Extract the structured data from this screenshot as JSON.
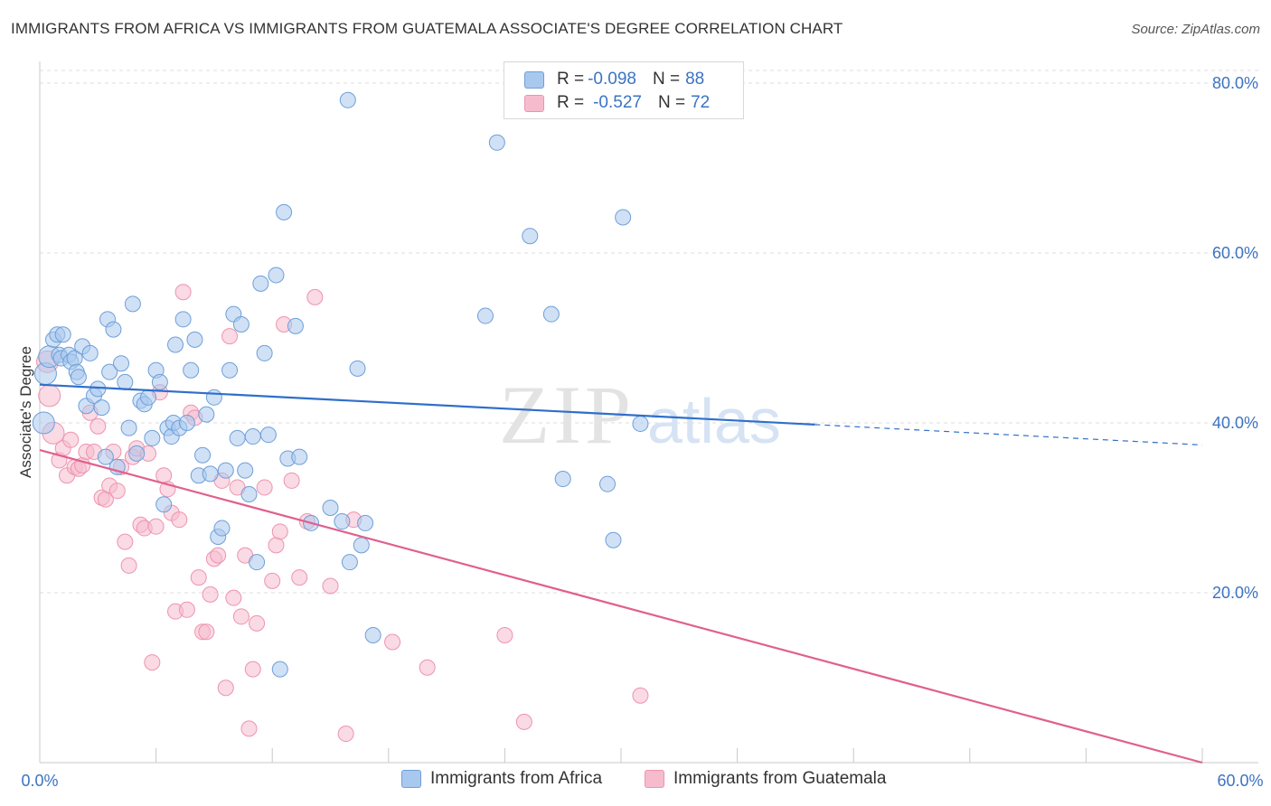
{
  "title": "IMMIGRANTS FROM AFRICA VS IMMIGRANTS FROM GUATEMALA ASSOCIATE'S DEGREE CORRELATION CHART",
  "source": "Source: ZipAtlas.com",
  "watermark": {
    "zip": "ZIP",
    "atlas": "atlas"
  },
  "colors": {
    "africa_fill": "#a9c8ee",
    "africa_stroke": "#6e9fd8",
    "africa_line": "#2f6fca",
    "guatemala_fill": "#f6bccd",
    "guatemala_stroke": "#ee93ae",
    "guatemala_line": "#e0608e",
    "axis_text": "#3b73c4",
    "grid": "#dddddd"
  },
  "legend_top": {
    "rows": [
      {
        "r_label": "R =",
        "r_value": "-0.098",
        "n_label": "N =",
        "n_value": "88"
      },
      {
        "r_label": "R =",
        "r_value": "-0.527",
        "n_label": "N =",
        "n_value": "72"
      }
    ]
  },
  "legend_bottom": [
    "Immigrants from Africa",
    "Immigrants from Guatemala"
  ],
  "chart_data": {
    "type": "scatter",
    "title": "IMMIGRANTS FROM AFRICA VS IMMIGRANTS FROM GUATEMALA ASSOCIATE'S DEGREE CORRELATION CHART",
    "xlabel": "",
    "ylabel": "Associate's Degree",
    "xlim": [
      0,
      60
    ],
    "ylim": [
      0,
      80
    ],
    "x_tick_labels": [
      "0.0%",
      "60.0%"
    ],
    "y_tick_labels": [
      "20.0%",
      "40.0%",
      "60.0%",
      "80.0%"
    ],
    "y_tick_values": [
      20,
      40,
      60,
      80
    ],
    "grid": true,
    "legend_position": "bottom",
    "series": [
      {
        "name": "Immigrants from Africa",
        "r": -0.098,
        "n": 88,
        "trend": {
          "x0": 0,
          "y0": 44.5,
          "x1": 40,
          "y1": 39.8,
          "dashed_to_x": 60,
          "dashed_to_y": 37.4
        },
        "points": [
          [
            0.2,
            40.0
          ],
          [
            0.3,
            45.8
          ],
          [
            0.5,
            47.8
          ],
          [
            0.7,
            49.8
          ],
          [
            0.9,
            50.4
          ],
          [
            1.0,
            48.0
          ],
          [
            1.1,
            47.6
          ],
          [
            1.2,
            50.4
          ],
          [
            1.5,
            48.0
          ],
          [
            1.6,
            47.2
          ],
          [
            1.8,
            47.6
          ],
          [
            1.9,
            46.0
          ],
          [
            2.0,
            45.4
          ],
          [
            2.2,
            49.0
          ],
          [
            2.4,
            42.0
          ],
          [
            2.6,
            48.2
          ],
          [
            2.8,
            43.2
          ],
          [
            3.0,
            44.0
          ],
          [
            3.2,
            41.8
          ],
          [
            3.4,
            36.0
          ],
          [
            3.5,
            52.2
          ],
          [
            3.6,
            46.0
          ],
          [
            3.8,
            51.0
          ],
          [
            4.0,
            34.8
          ],
          [
            4.2,
            47.0
          ],
          [
            4.4,
            44.8
          ],
          [
            4.6,
            39.4
          ],
          [
            4.8,
            54.0
          ],
          [
            5.0,
            36.4
          ],
          [
            5.2,
            42.6
          ],
          [
            5.4,
            42.2
          ],
          [
            5.6,
            43.0
          ],
          [
            5.8,
            38.2
          ],
          [
            6.0,
            46.2
          ],
          [
            6.2,
            44.8
          ],
          [
            6.4,
            30.4
          ],
          [
            6.6,
            39.4
          ],
          [
            6.8,
            38.4
          ],
          [
            6.9,
            40.0
          ],
          [
            7.0,
            49.2
          ],
          [
            7.2,
            39.4
          ],
          [
            7.4,
            52.2
          ],
          [
            7.6,
            40.0
          ],
          [
            7.8,
            46.2
          ],
          [
            8.0,
            49.8
          ],
          [
            8.2,
            33.8
          ],
          [
            8.4,
            36.2
          ],
          [
            8.6,
            41.0
          ],
          [
            8.8,
            34.0
          ],
          [
            9.0,
            43.0
          ],
          [
            9.2,
            26.6
          ],
          [
            9.4,
            27.6
          ],
          [
            9.6,
            34.4
          ],
          [
            9.8,
            46.2
          ],
          [
            10.0,
            52.8
          ],
          [
            10.2,
            38.2
          ],
          [
            10.4,
            51.6
          ],
          [
            10.6,
            34.4
          ],
          [
            10.8,
            31.6
          ],
          [
            11.0,
            38.4
          ],
          [
            11.2,
            23.6
          ],
          [
            11.4,
            56.4
          ],
          [
            11.6,
            48.2
          ],
          [
            11.8,
            38.6
          ],
          [
            12.2,
            57.4
          ],
          [
            12.4,
            11.0
          ],
          [
            12.6,
            64.8
          ],
          [
            12.8,
            35.8
          ],
          [
            13.2,
            51.4
          ],
          [
            13.4,
            36.0
          ],
          [
            14.0,
            28.2
          ],
          [
            15.0,
            30.0
          ],
          [
            15.6,
            28.4
          ],
          [
            15.9,
            78.0
          ],
          [
            16.0,
            23.6
          ],
          [
            16.4,
            46.4
          ],
          [
            16.6,
            25.6
          ],
          [
            16.8,
            28.2
          ],
          [
            17.2,
            15.0
          ],
          [
            23.0,
            52.6
          ],
          [
            23.6,
            73.0
          ],
          [
            25.3,
            62.0
          ],
          [
            26.4,
            52.8
          ],
          [
            27.0,
            33.4
          ],
          [
            29.3,
            32.8
          ],
          [
            29.6,
            26.2
          ],
          [
            30.1,
            64.2
          ],
          [
            31.0,
            39.9
          ]
        ]
      },
      {
        "name": "Immigrants from Guatemala",
        "r": -0.527,
        "n": 72,
        "trend": {
          "x0": 0,
          "y0": 36.8,
          "x1": 60,
          "y1": 0
        },
        "points": [
          [
            0.4,
            47.2
          ],
          [
            0.5,
            43.2
          ],
          [
            0.7,
            38.8
          ],
          [
            1.0,
            35.6
          ],
          [
            1.2,
            37.0
          ],
          [
            1.4,
            33.8
          ],
          [
            1.6,
            38.0
          ],
          [
            1.8,
            34.8
          ],
          [
            2.0,
            34.6
          ],
          [
            2.2,
            35.0
          ],
          [
            2.4,
            36.6
          ],
          [
            2.6,
            41.2
          ],
          [
            2.8,
            36.6
          ],
          [
            3.0,
            39.6
          ],
          [
            3.2,
            31.2
          ],
          [
            3.4,
            31.0
          ],
          [
            3.6,
            32.6
          ],
          [
            3.8,
            36.6
          ],
          [
            4.0,
            32.0
          ],
          [
            4.2,
            34.8
          ],
          [
            4.4,
            26.0
          ],
          [
            4.6,
            23.2
          ],
          [
            4.8,
            36.0
          ],
          [
            5.0,
            37.0
          ],
          [
            5.2,
            28.0
          ],
          [
            5.4,
            27.6
          ],
          [
            5.6,
            36.4
          ],
          [
            5.8,
            11.8
          ],
          [
            6.0,
            27.8
          ],
          [
            6.2,
            43.6
          ],
          [
            6.4,
            33.8
          ],
          [
            6.6,
            32.2
          ],
          [
            6.8,
            29.4
          ],
          [
            7.0,
            17.8
          ],
          [
            7.2,
            28.6
          ],
          [
            7.4,
            55.4
          ],
          [
            7.6,
            18.0
          ],
          [
            7.8,
            41.2
          ],
          [
            8.0,
            40.6
          ],
          [
            8.2,
            21.8
          ],
          [
            8.4,
            15.4
          ],
          [
            8.6,
            15.4
          ],
          [
            8.8,
            19.8
          ],
          [
            9.0,
            24.0
          ],
          [
            9.2,
            24.4
          ],
          [
            9.4,
            33.2
          ],
          [
            9.6,
            8.8
          ],
          [
            9.8,
            50.2
          ],
          [
            10.0,
            19.4
          ],
          [
            10.2,
            32.4
          ],
          [
            10.4,
            17.2
          ],
          [
            10.6,
            24.4
          ],
          [
            10.8,
            4.0
          ],
          [
            11.0,
            11.0
          ],
          [
            11.2,
            16.4
          ],
          [
            11.6,
            32.4
          ],
          [
            12.0,
            21.4
          ],
          [
            12.2,
            25.6
          ],
          [
            12.4,
            27.2
          ],
          [
            12.6,
            51.6
          ],
          [
            13.0,
            33.2
          ],
          [
            13.4,
            21.8
          ],
          [
            13.8,
            28.4
          ],
          [
            14.2,
            54.8
          ],
          [
            15.0,
            20.8
          ],
          [
            15.8,
            3.4
          ],
          [
            16.2,
            28.6
          ],
          [
            18.2,
            14.2
          ],
          [
            20.0,
            11.2
          ],
          [
            24.0,
            15.0
          ],
          [
            25.0,
            4.8
          ],
          [
            31.0,
            7.9
          ]
        ]
      }
    ]
  }
}
